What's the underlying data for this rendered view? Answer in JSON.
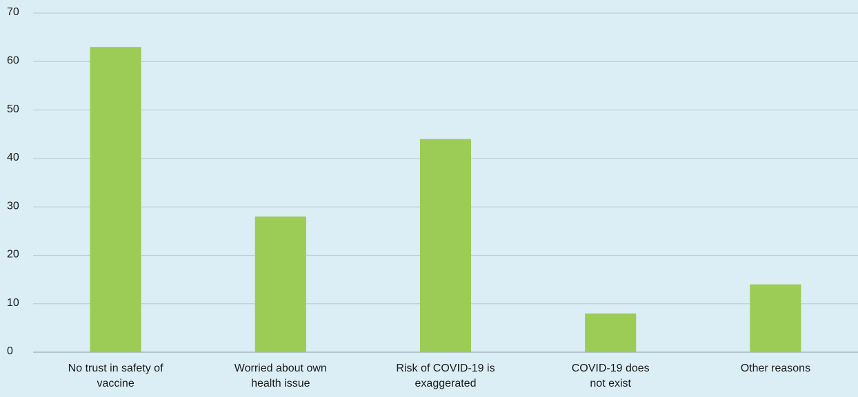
{
  "chart_data": {
    "type": "bar",
    "categories": [
      "No trust in safety of vaccine",
      "Worried about own health issue",
      "Risk of COVID-19 is exaggerated",
      "COVID-19 does not exist",
      "Other reasons"
    ],
    "values": [
      63,
      28,
      44,
      8,
      14
    ],
    "color": "#9ccc55",
    "ylim": [
      0,
      70
    ],
    "yticks": [
      0,
      10,
      20,
      30,
      40,
      50,
      60,
      70
    ],
    "grid": true
  }
}
